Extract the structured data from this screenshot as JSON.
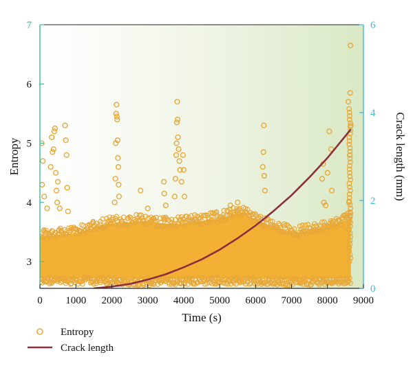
{
  "chart_data": {
    "type": "scatter",
    "title": "",
    "xlabel": "Time (s)",
    "ylabel_left": "Entropy",
    "ylabel_right": "Crack length (mm)",
    "xlim": [
      0,
      9000
    ],
    "ylim_left": [
      2.55,
      7
    ],
    "ylim_right": [
      0,
      6
    ],
    "x_ticks": [
      "0",
      "1000",
      "2000",
      "3000",
      "4000",
      "5000",
      "6000",
      "7000",
      "8000",
      "9000"
    ],
    "y_left_ticks": [
      "3",
      "4",
      "5",
      "6",
      "7"
    ],
    "y_right_ticks": [
      "0",
      "2",
      "4",
      "6"
    ],
    "grid": false,
    "legend_position": "bottom-left",
    "colors": {
      "entropy": "#E8A838",
      "entropy_fill": "#F2B135",
      "crack": "#8B2E3C",
      "left_axis": "#3CB89A",
      "right_axis": "#3BB7D6",
      "bg_left": "#FFFFFF",
      "bg_right": "#D9E8C4"
    },
    "series": [
      {
        "name": "Entropy",
        "kind": "scatter",
        "axis": "left",
        "band": {
          "x_start": 0,
          "x_end": 8650,
          "lower": [
            [
              0,
              2.62
            ],
            [
              1500,
              2.62
            ],
            [
              3000,
              2.6
            ],
            [
              5000,
              2.62
            ],
            [
              7000,
              2.6
            ],
            [
              8650,
              2.62
            ]
          ],
          "upper": [
            [
              0,
              3.55
            ],
            [
              1000,
              3.6
            ],
            [
              1800,
              3.75
            ],
            [
              2800,
              3.8
            ],
            [
              3800,
              3.75
            ],
            [
              5000,
              3.85
            ],
            [
              5600,
              3.95
            ],
            [
              6300,
              3.75
            ],
            [
              7000,
              3.6
            ],
            [
              8000,
              3.7
            ],
            [
              8650,
              3.85
            ]
          ]
        },
        "outliers": [
          [
            50,
            5.0
          ],
          [
            60,
            4.3
          ],
          [
            80,
            4.7
          ],
          [
            120,
            4.1
          ],
          [
            200,
            3.9
          ],
          [
            300,
            4.6
          ],
          [
            330,
            5.1
          ],
          [
            350,
            4.85
          ],
          [
            380,
            4.9
          ],
          [
            400,
            5.2
          ],
          [
            420,
            5.25
          ],
          [
            440,
            4.5
          ],
          [
            460,
            4.2
          ],
          [
            480,
            4.0
          ],
          [
            500,
            4.35
          ],
          [
            550,
            3.9
          ],
          [
            700,
            5.3
          ],
          [
            720,
            5.05
          ],
          [
            740,
            4.8
          ],
          [
            760,
            4.25
          ],
          [
            780,
            3.85
          ],
          [
            2080,
            4.0
          ],
          [
            2100,
            4.4
          ],
          [
            2110,
            5.0
          ],
          [
            2120,
            5.5
          ],
          [
            2130,
            5.65
          ],
          [
            2140,
            5.45
          ],
          [
            2150,
            5.4
          ],
          [
            2160,
            5.05
          ],
          [
            2170,
            4.75
          ],
          [
            2180,
            4.6
          ],
          [
            2190,
            4.3
          ],
          [
            2200,
            4.1
          ],
          [
            2800,
            4.2
          ],
          [
            3000,
            3.9
          ],
          [
            3450,
            4.35
          ],
          [
            3460,
            4.15
          ],
          [
            3500,
            3.95
          ],
          [
            3750,
            4.1
          ],
          [
            3770,
            4.4
          ],
          [
            3790,
            4.8
          ],
          [
            3800,
            5.0
          ],
          [
            3810,
            5.35
          ],
          [
            3820,
            5.7
          ],
          [
            3830,
            5.4
          ],
          [
            3840,
            5.1
          ],
          [
            3860,
            4.9
          ],
          [
            3880,
            4.7
          ],
          [
            3900,
            4.55
          ],
          [
            3940,
            4.35
          ],
          [
            3980,
            4.8
          ],
          [
            4000,
            4.55
          ],
          [
            4020,
            4.1
          ],
          [
            5300,
            3.95
          ],
          [
            5500,
            4.0
          ],
          [
            6200,
            4.6
          ],
          [
            6220,
            4.85
          ],
          [
            6230,
            5.3
          ],
          [
            6240,
            4.45
          ],
          [
            6260,
            4.2
          ],
          [
            7850,
            4.4
          ],
          [
            7880,
            4.65
          ],
          [
            7900,
            4.0
          ],
          [
            7950,
            3.95
          ],
          [
            8000,
            4.5
          ],
          [
            8050,
            5.2
          ],
          [
            8100,
            4.9
          ],
          [
            8120,
            4.2
          ],
          [
            8580,
            5.7
          ],
          [
            8600,
            4.0
          ],
          [
            8620,
            4.8
          ],
          [
            8630,
            5.85
          ],
          [
            8640,
            6.65
          ],
          [
            8650,
            5.3
          ]
        ]
      },
      {
        "name": "Crack length",
        "kind": "line",
        "axis": "right",
        "x": [
          1500,
          2000,
          2500,
          3000,
          3500,
          4000,
          4500,
          5000,
          5500,
          6000,
          6500,
          7000,
          7500,
          8000,
          8500,
          8650
        ],
        "y": [
          0.0,
          0.04,
          0.1,
          0.2,
          0.32,
          0.48,
          0.66,
          0.88,
          1.14,
          1.43,
          1.76,
          2.12,
          2.53,
          2.97,
          3.47,
          3.62
        ]
      }
    ]
  }
}
